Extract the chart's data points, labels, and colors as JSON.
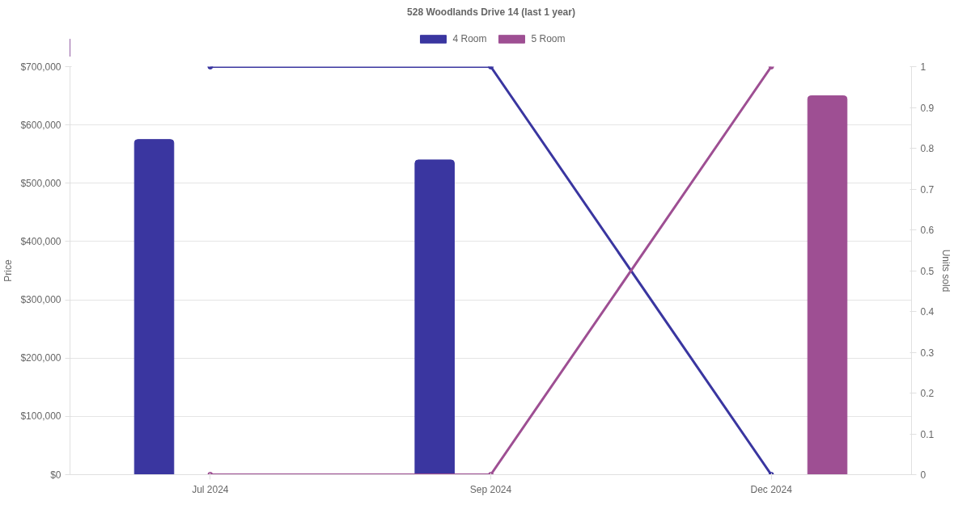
{
  "chart_data": {
    "type": "bar",
    "title": "528 Woodlands Drive 14 (last 1 year)",
    "categories": [
      "Jul 2024",
      "Sep 2024",
      "Dec 2024"
    ],
    "ylabel": "Price",
    "y2label": "Units sold",
    "ylim": [
      0,
      700000
    ],
    "yticks": [
      {
        "value": 0,
        "label": "$0"
      },
      {
        "value": 100000,
        "label": "$100,000"
      },
      {
        "value": 200000,
        "label": "$200,000"
      },
      {
        "value": 300000,
        "label": "$300,000"
      },
      {
        "value": 400000,
        "label": "$400,000"
      },
      {
        "value": 500000,
        "label": "$500,000"
      },
      {
        "value": 600000,
        "label": "$600,000"
      },
      {
        "value": 700000,
        "label": "$700,000"
      }
    ],
    "y2lim": [
      0,
      1
    ],
    "y2ticks": [
      0,
      0.1,
      0.2,
      0.3,
      0.4,
      0.5,
      0.6,
      0.7,
      0.8,
      0.9,
      1
    ],
    "grid": "y",
    "legend": "top",
    "marker": "circle",
    "series": [
      {
        "name": "4 Room",
        "color": "#3a36a0",
        "values": [
          575000,
          540000,
          null
        ]
      },
      {
        "name": "5 Room",
        "color": "#9e4f93",
        "values": [
          null,
          null,
          650000
        ]
      },
      {
        "type": "line",
        "axis": "y2",
        "color": "#3a36a0",
        "values": [
          1,
          1,
          0
        ]
      },
      {
        "type": "line",
        "axis": "y2",
        "color": "#9e4f93",
        "values": [
          0,
          0,
          1
        ]
      }
    ]
  }
}
